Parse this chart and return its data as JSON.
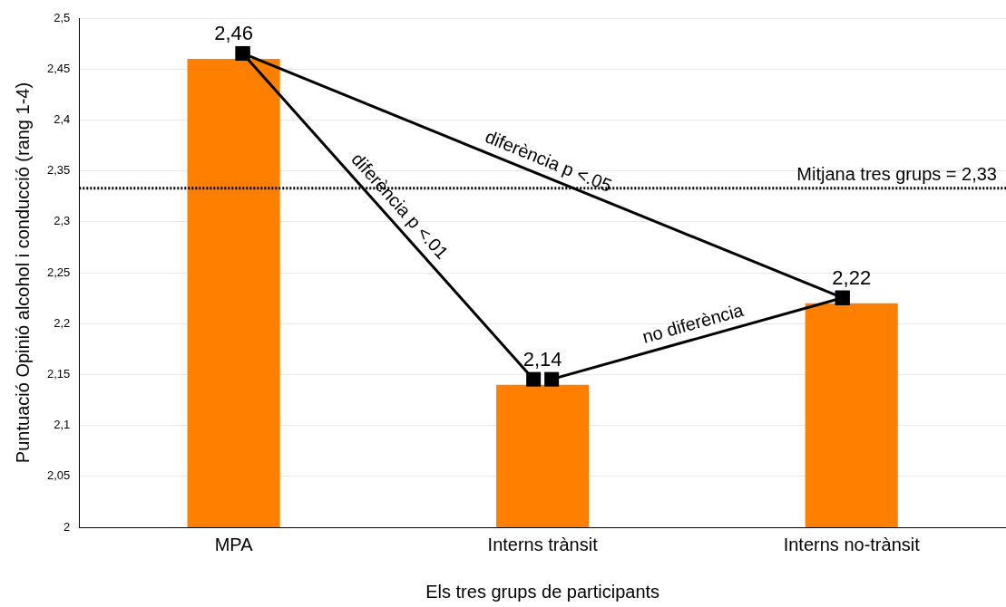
{
  "chart_data": {
    "type": "bar",
    "xlabel": "Els tres grups de participants",
    "ylabel": "Puntuació Opinió alcohol i conducció (rang 1-4)",
    "categories": [
      "MPA",
      "Interns trànsit",
      "Interns no-trànsit"
    ],
    "values": [
      2.46,
      2.14,
      2.22
    ],
    "color": "#ff8000",
    "value_labels": [
      "2,46",
      "2,14",
      "2,22"
    ],
    "ylim": [
      2,
      2.5
    ],
    "yticks": [
      {
        "value": 2,
        "label": "2"
      },
      {
        "value": 2.05,
        "label": "2,05"
      },
      {
        "value": 2.1,
        "label": "2,1"
      },
      {
        "value": 2.15,
        "label": "2,15"
      },
      {
        "value": 2.2,
        "label": "2,2"
      },
      {
        "value": 2.25,
        "label": "2,25"
      },
      {
        "value": 2.3,
        "label": "2,3"
      },
      {
        "value": 2.35,
        "label": "2,35"
      },
      {
        "value": 2.4,
        "label": "2,4"
      },
      {
        "value": 2.45,
        "label": "2,45"
      },
      {
        "value": 2.5,
        "label": "2,5"
      }
    ],
    "grid": "y",
    "ref_lines": [
      {
        "axis": "y",
        "value": 2.333,
        "label": "Mitjana tres grups = 2,33",
        "line_style": "dotted",
        "color": "#000000"
      }
    ],
    "annotations": [
      "diferència p <.01",
      "diferència p <.05",
      "no diferència"
    ]
  }
}
